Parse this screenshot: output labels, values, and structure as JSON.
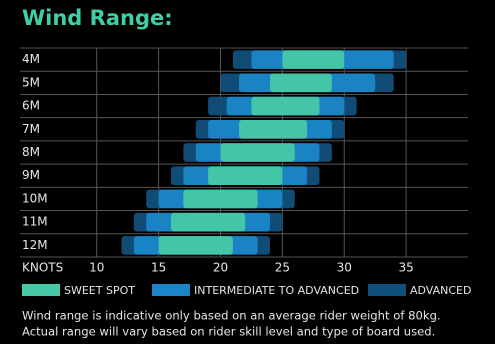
{
  "chart_data": {
    "type": "range-bar",
    "title": "Wind Range:",
    "x_label": "KNOTS",
    "categories": [
      "4M",
      "5M",
      "6M",
      "7M",
      "8M",
      "9M",
      "10M",
      "11M",
      "12M"
    ],
    "series": [
      {
        "name": "ADVANCED",
        "color": "#12507c",
        "low": [
          21,
          20,
          19,
          18,
          17,
          16,
          14,
          13,
          12
        ],
        "high": [
          35,
          34,
          31,
          30,
          29,
          28,
          26,
          25,
          24
        ]
      },
      {
        "name": "INTERMEDIATE TO ADVANCED",
        "color": "#1a86c8",
        "low": [
          22.5,
          21.5,
          20.5,
          19,
          18,
          17,
          15,
          14,
          13
        ],
        "high": [
          34,
          32.5,
          30,
          29,
          28,
          27,
          25,
          24,
          23
        ]
      },
      {
        "name": "SWEET SPOT",
        "color": "#47c8a6",
        "low": [
          25,
          24,
          22.5,
          21.5,
          20,
          19,
          17,
          16,
          15
        ],
        "high": [
          30,
          29,
          28,
          27,
          26,
          25,
          23,
          22,
          21
        ]
      }
    ],
    "xlim": [
      3.8,
      40
    ],
    "xticks": [
      10,
      15,
      20,
      25,
      30,
      35
    ],
    "note": [
      "Wind range is indicative only based on an average rider weight of 80kg.",
      "Actual range will vary based on rider skill level and type of board used."
    ]
  }
}
